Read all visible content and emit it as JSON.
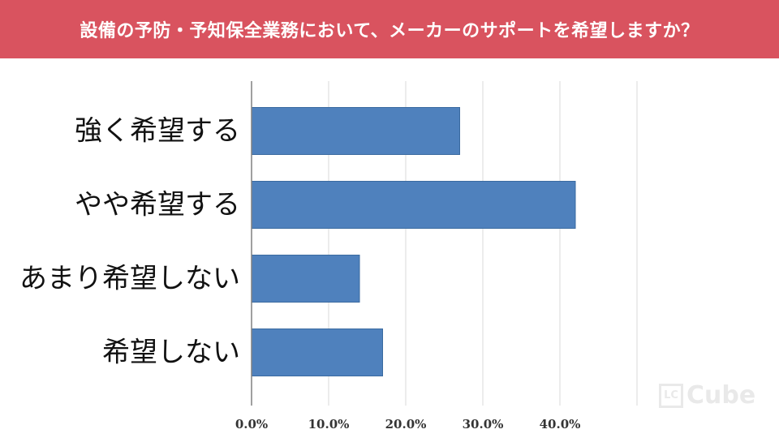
{
  "header": {
    "title": "設備の予防・予知保全業務において、メーカーのサポートを希望しますか？"
  },
  "watermark": {
    "box_label": "LC",
    "text": "Cube"
  },
  "colors": {
    "header_bg": "#d9535f",
    "bar": "#4f81bd",
    "grid": "#d9d9d9",
    "axis": "#808080"
  },
  "chart_data": {
    "type": "bar",
    "orientation": "horizontal",
    "title": "",
    "xlabel": "",
    "ylabel": "",
    "categories": [
      "強く希望する",
      "やや希望する",
      "あまり希望しない",
      "希望しない"
    ],
    "values": [
      27.0,
      42.0,
      14.0,
      17.0
    ],
    "xlim": [
      0,
      50
    ],
    "ticks": [
      0,
      10,
      20,
      30,
      40
    ],
    "tick_labels": [
      "0.0%",
      "10.0%",
      "20.0%",
      "30.0%",
      "40.0%"
    ],
    "grid": true,
    "legend": "none"
  }
}
